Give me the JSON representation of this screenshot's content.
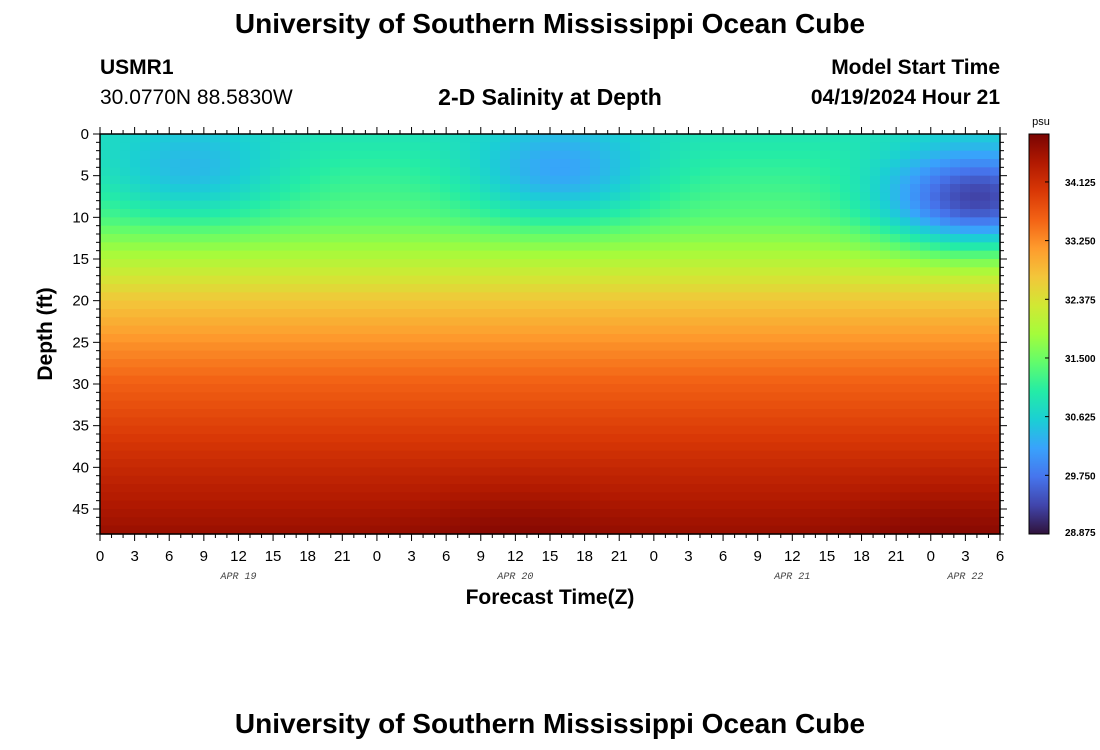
{
  "header": {
    "title_top": "University of Southern Mississippi Ocean Cube",
    "title_bottom": "University of Southern Mississippi Ocean Cube",
    "station_id": "USMR1",
    "coordinates": "30.0770N  88.5830W",
    "plot_title": "2-D Salinity at Depth",
    "model_start_label": "Model Start Time",
    "model_start_value": "04/19/2024 Hour 21"
  },
  "chart_data": {
    "type": "heatmap",
    "title": "2-D Salinity at Depth",
    "xlabel": "Forecast Time(Z)",
    "ylabel": "Depth (ft)",
    "units": "psu",
    "x_range_hours": [
      0,
      78
    ],
    "x_tick_labels": [
      "0",
      "3",
      "6",
      "9",
      "12",
      "15",
      "18",
      "21",
      "0",
      "3",
      "6",
      "9",
      "12",
      "15",
      "18",
      "21",
      "0",
      "3",
      "6",
      "9",
      "12",
      "15",
      "18",
      "21",
      "0",
      "3",
      "6"
    ],
    "date_labels": [
      {
        "label": "APR 19",
        "hour": 12
      },
      {
        "label": "APR 20",
        "hour": 36
      },
      {
        "label": "APR 21",
        "hour": 60
      },
      {
        "label": "APR 22",
        "hour": 75
      }
    ],
    "y_range_ft": [
      0,
      48
    ],
    "y_ticks": [
      0,
      5,
      10,
      15,
      20,
      25,
      30,
      35,
      40,
      45
    ],
    "colorbar": {
      "range": [
        28.875,
        34.84
      ],
      "ticks": [
        "34.125",
        "33.250",
        "32.375",
        "31.500",
        "30.625",
        "29.750",
        "28.875"
      ],
      "units_label": "psu",
      "colors": [
        "#30123b",
        "#4145ab",
        "#4675ed",
        "#39a2fc",
        "#1bcfd4",
        "#24eca6",
        "#61fc6c",
        "#a4fc3b",
        "#d1e834",
        "#f3c63a",
        "#fe9b2d",
        "#f36315",
        "#d93806",
        "#b11901",
        "#7a0402"
      ]
    },
    "depth_profile_representative": [
      {
        "depth_ft": 0,
        "salinity": 30.9
      },
      {
        "depth_ft": 10,
        "salinity": 31.4
      },
      {
        "depth_ft": 15,
        "salinity": 32.0
      },
      {
        "depth_ft": 20,
        "salinity": 32.7
      },
      {
        "depth_ft": 25,
        "salinity": 33.2
      },
      {
        "depth_ft": 30,
        "salinity": 33.6
      },
      {
        "depth_ft": 35,
        "salinity": 33.9
      },
      {
        "depth_ft": 40,
        "salinity": 34.2
      },
      {
        "depth_ft": 45,
        "salinity": 34.45
      },
      {
        "depth_ft": 48,
        "salinity": 34.6
      }
    ],
    "features": [
      {
        "hour": 8,
        "depth_ft": 5,
        "salinity": 30.4,
        "note": "low salinity pocket"
      },
      {
        "hour": 40,
        "depth_ft": 5,
        "salinity": 30.2,
        "note": "low salinity pocket"
      },
      {
        "hour": 76,
        "depth_ft": 8,
        "salinity": 29.3,
        "note": "freshest surface water"
      },
      {
        "hour": 36,
        "depth_ft": 47,
        "salinity": 34.7,
        "note": "saltiest bottom water"
      },
      {
        "hour": 73,
        "depth_ft": 47,
        "salinity": 34.7,
        "note": "saltiest bottom water"
      }
    ]
  }
}
